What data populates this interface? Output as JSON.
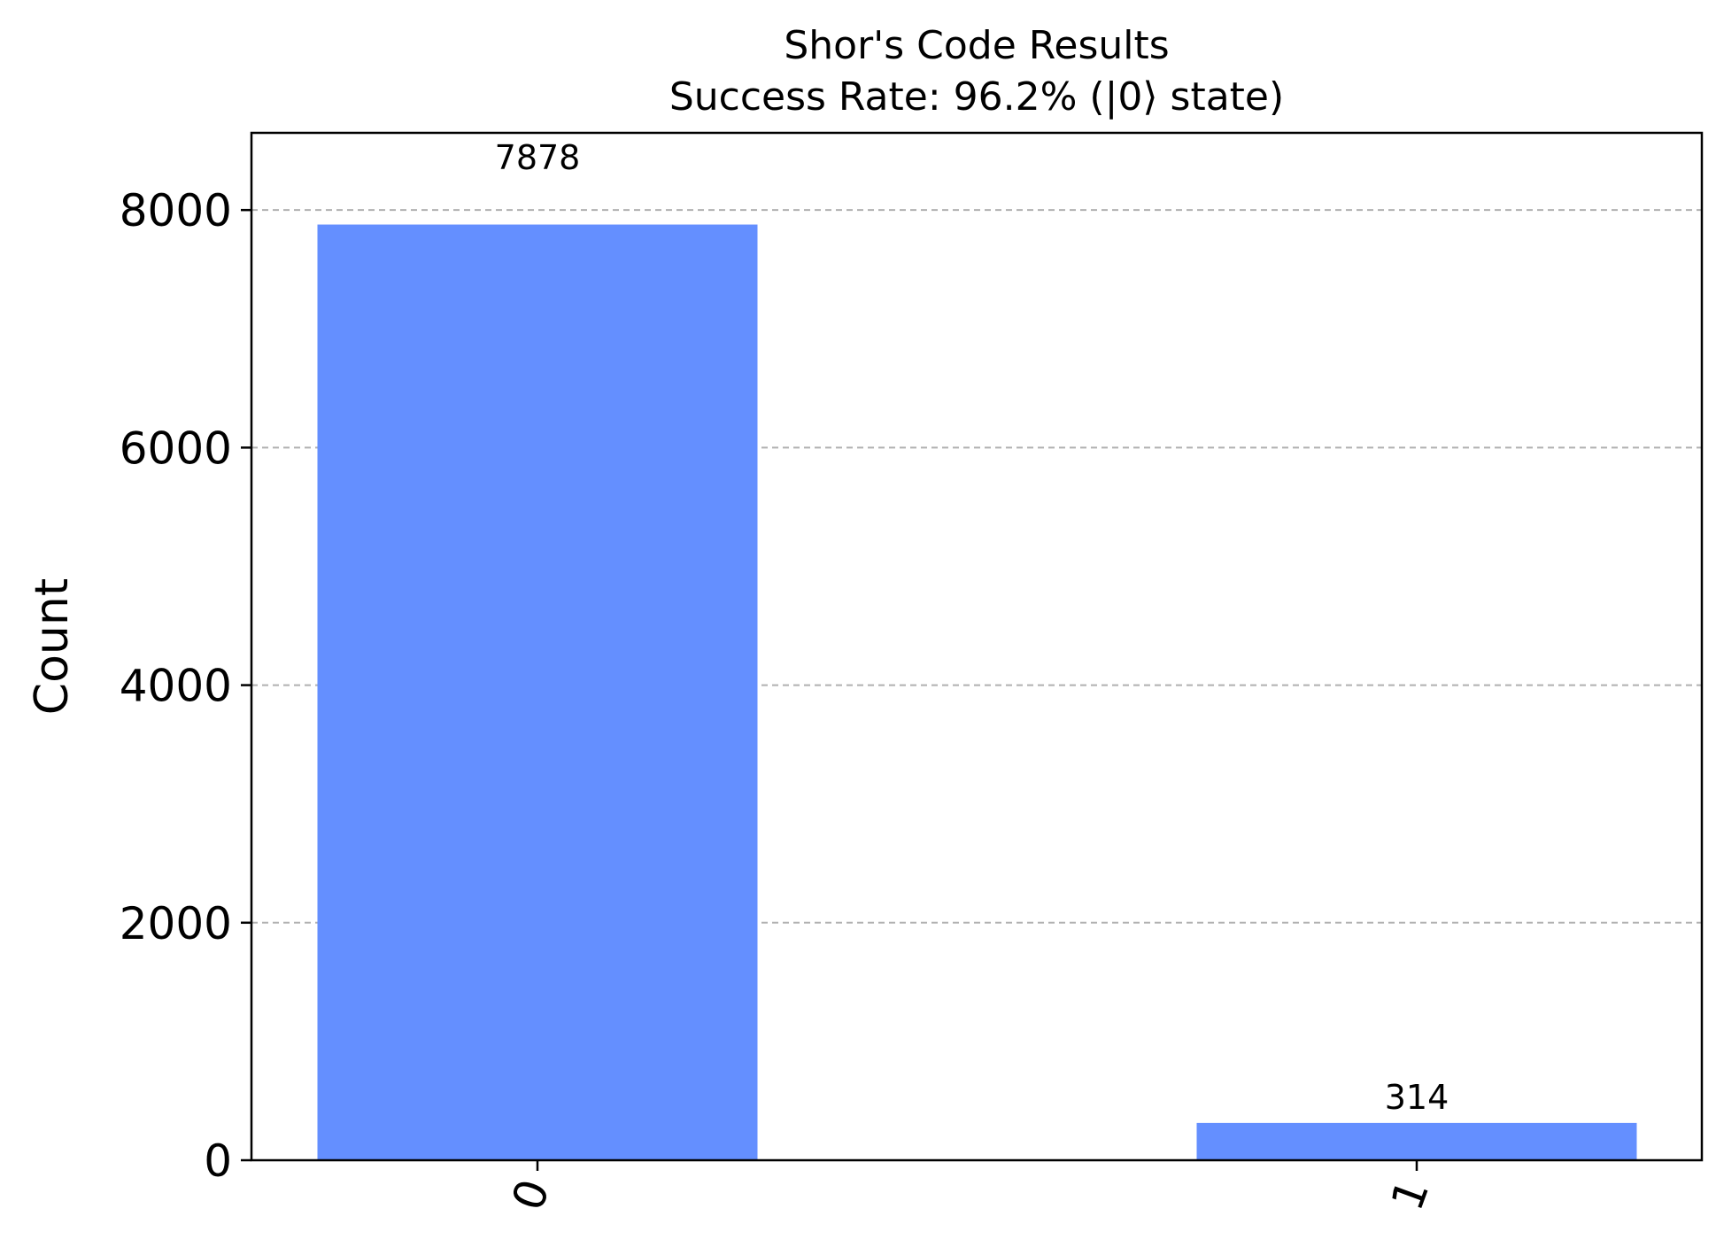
{
  "chart_data": {
    "type": "bar",
    "title": "Shor's Code Results",
    "subtitle": "Success Rate: 96.2% (|0⟩ state)",
    "xlabel": "",
    "ylabel": "Count",
    "categories": [
      "0",
      "1"
    ],
    "values": [
      7878,
      314
    ],
    "data_labels": [
      "7878",
      "314"
    ],
    "ylim": [
      0,
      8650
    ],
    "yticks": [
      0,
      2000,
      4000,
      6000,
      8000
    ],
    "ytick_labels": [
      "0",
      "2000",
      "4000",
      "6000",
      "8000"
    ],
    "xtick_rotation": 70,
    "grid": "y-axis dashed",
    "legend": "none",
    "bar_color": "#648fff",
    "grid_color": "#b0b0b0"
  }
}
